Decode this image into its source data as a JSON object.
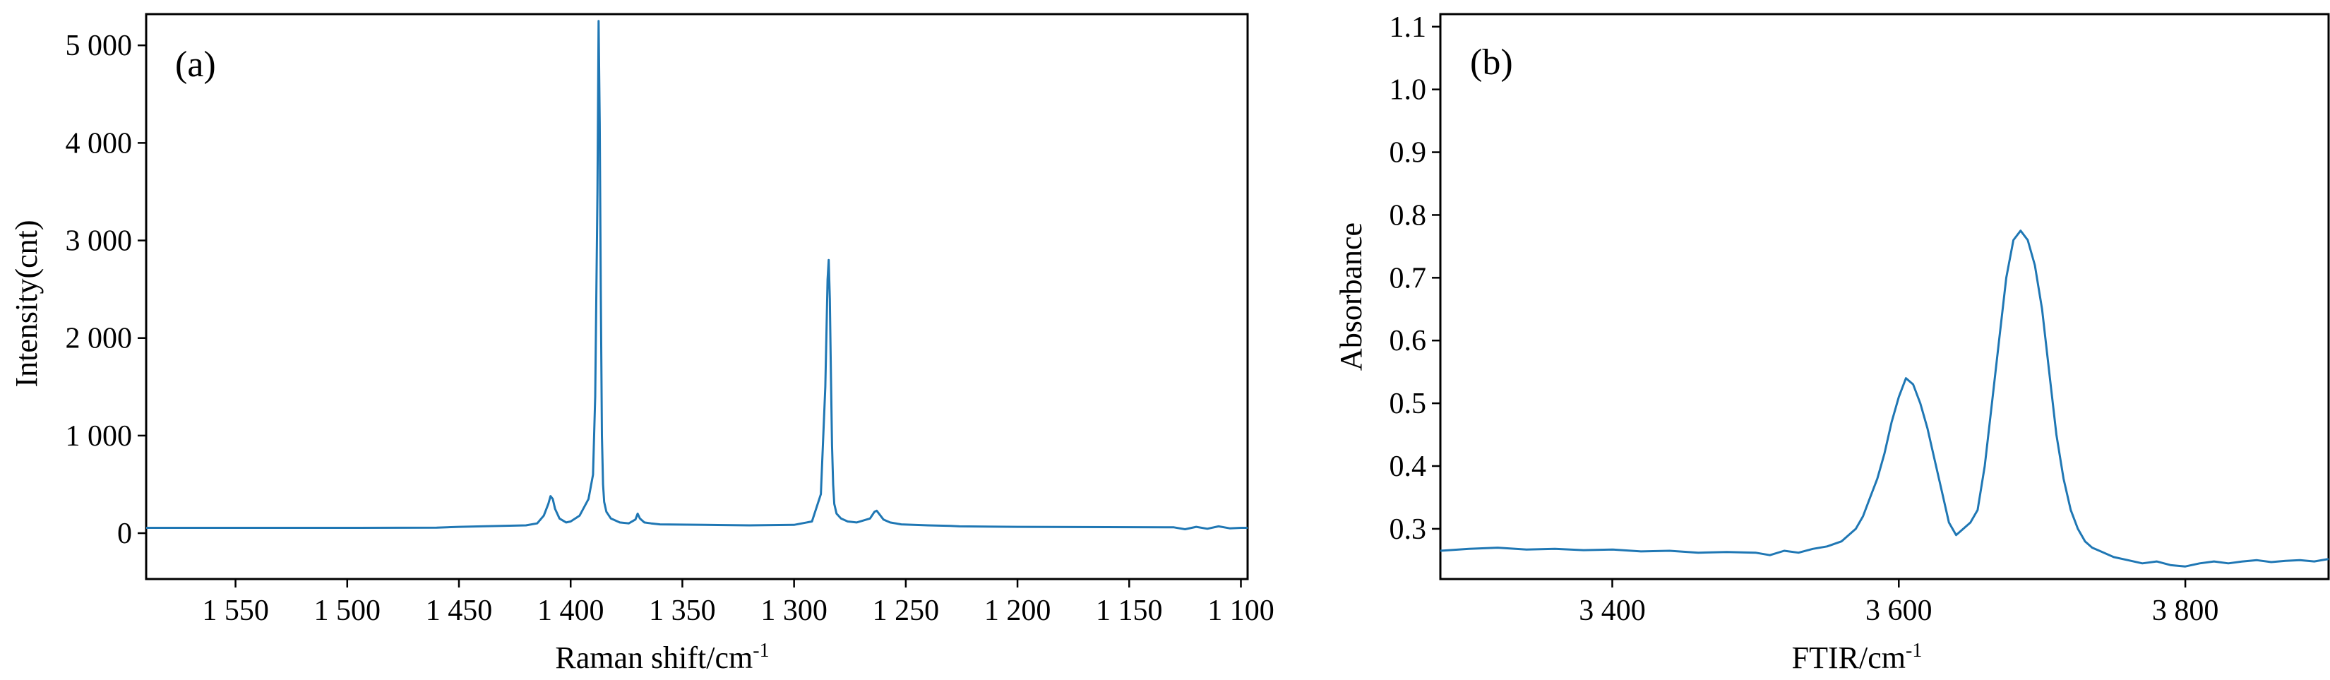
{
  "chart_data": [
    {
      "type": "line",
      "panel_label": "(a)",
      "xlabel": "Raman shift/cm",
      "xlabel_sup": "-1",
      "ylabel": "Intensity(cnt)",
      "xlim": [
        1590,
        1097
      ],
      "ylim": [
        -470,
        5320
      ],
      "x_reversed": true,
      "xticks": [
        1550,
        1500,
        1450,
        1400,
        1350,
        1300,
        1250,
        1200,
        1150,
        1100
      ],
      "xtick_labels": [
        "1 550",
        "1 500",
        "1 450",
        "1 400",
        "1 350",
        "1 300",
        "1 250",
        "1 200",
        "1 150",
        "1 100"
      ],
      "yticks": [
        0,
        1000,
        2000,
        3000,
        4000,
        5000
      ],
      "ytick_labels": [
        "0",
        "1 000",
        "2 000",
        "3 000",
        "4 000",
        "5 000"
      ],
      "color": "#1f77b4",
      "series": [
        {
          "x": [
            1590,
            1550,
            1500,
            1460,
            1450,
            1440,
            1420,
            1415,
            1412,
            1410,
            1409,
            1408,
            1407,
            1405,
            1402,
            1400,
            1396,
            1392,
            1390,
            1389,
            1388,
            1387.5,
            1387,
            1386.5,
            1386,
            1385.5,
            1385,
            1384,
            1382,
            1378,
            1374,
            1371,
            1370,
            1369,
            1367,
            1364,
            1360,
            1340,
            1320,
            1300,
            1292,
            1288,
            1286,
            1285,
            1284.5,
            1284,
            1283.5,
            1283,
            1282.5,
            1282,
            1281,
            1279,
            1276,
            1272,
            1266,
            1264,
            1263,
            1262,
            1260,
            1257,
            1252,
            1240,
            1230,
            1226,
            1200,
            1160,
            1130,
            1125,
            1120,
            1115,
            1110,
            1105,
            1100,
            1097
          ],
          "y": [
            55,
            55,
            55,
            57,
            65,
            70,
            80,
            100,
            180,
            300,
            380,
            350,
            250,
            150,
            110,
            120,
            180,
            350,
            600,
            1400,
            3500,
            5250,
            4200,
            2500,
            1000,
            500,
            320,
            220,
            150,
            110,
            100,
            140,
            200,
            150,
            110,
            100,
            90,
            85,
            80,
            85,
            120,
            400,
            1500,
            2600,
            2800,
            2400,
            1600,
            900,
            500,
            300,
            200,
            150,
            120,
            110,
            150,
            220,
            230,
            200,
            140,
            110,
            90,
            80,
            75,
            70,
            65,
            62,
            60,
            40,
            65,
            45,
            70,
            50,
            55,
            55
          ]
        }
      ]
    },
    {
      "type": "line",
      "panel_label": "(b)",
      "xlabel": "FTIR/cm",
      "xlabel_sup": "-1",
      "ylabel": "Absorbance",
      "xlim": [
        3280,
        3900
      ],
      "ylim": [
        0.22,
        1.12
      ],
      "xticks": [
        3400,
        3600,
        3800
      ],
      "xtick_labels": [
        "3 400",
        "3 600",
        "3 800"
      ],
      "yticks": [
        0.3,
        0.4,
        0.5,
        0.6,
        0.7,
        0.8,
        0.9,
        1.0,
        1.1
      ],
      "ytick_labels": [
        "0.3",
        "0.4",
        "0.5",
        "0.6",
        "0.7",
        "0.8",
        "0.9",
        "1.0",
        "1.1"
      ],
      "color": "#1f77b4",
      "series": [
        {
          "x": [
            3280,
            3300,
            3320,
            3340,
            3360,
            3380,
            3400,
            3420,
            3440,
            3460,
            3480,
            3500,
            3510,
            3520,
            3530,
            3540,
            3550,
            3560,
            3565,
            3570,
            3575,
            3580,
            3585,
            3590,
            3595,
            3600,
            3605,
            3610,
            3615,
            3620,
            3625,
            3630,
            3635,
            3640,
            3645,
            3650,
            3655,
            3660,
            3665,
            3670,
            3675,
            3680,
            3685,
            3690,
            3695,
            3700,
            3705,
            3710,
            3715,
            3720,
            3725,
            3730,
            3735,
            3740,
            3750,
            3760,
            3770,
            3780,
            3790,
            3800,
            3810,
            3820,
            3830,
            3840,
            3850,
            3860,
            3870,
            3880,
            3890,
            3900
          ],
          "y": [
            0.265,
            0.268,
            0.27,
            0.267,
            0.268,
            0.266,
            0.267,
            0.264,
            0.265,
            0.262,
            0.263,
            0.262,
            0.258,
            0.265,
            0.262,
            0.268,
            0.272,
            0.28,
            0.29,
            0.3,
            0.32,
            0.35,
            0.38,
            0.42,
            0.47,
            0.51,
            0.54,
            0.53,
            0.5,
            0.46,
            0.41,
            0.36,
            0.31,
            0.29,
            0.3,
            0.31,
            0.33,
            0.4,
            0.5,
            0.6,
            0.7,
            0.76,
            0.775,
            0.76,
            0.72,
            0.65,
            0.55,
            0.45,
            0.38,
            0.33,
            0.3,
            0.28,
            0.27,
            0.265,
            0.255,
            0.25,
            0.245,
            0.248,
            0.242,
            0.24,
            0.245,
            0.248,
            0.245,
            0.248,
            0.25,
            0.247,
            0.249,
            0.25,
            0.248,
            0.252
          ]
        }
      ]
    }
  ]
}
